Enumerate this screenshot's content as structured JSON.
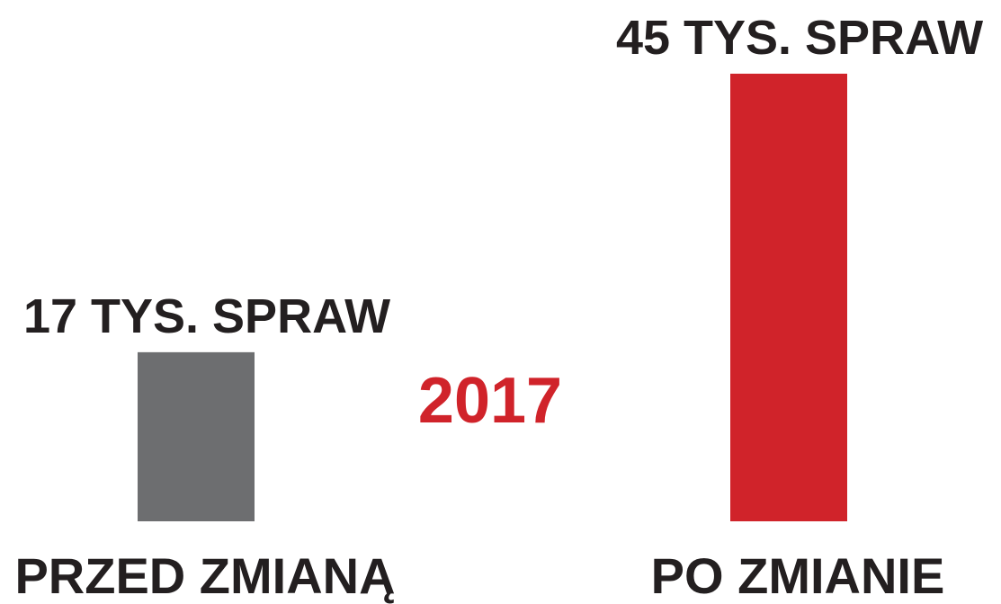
{
  "chart_data": {
    "type": "bar",
    "categories": [
      "PRZED ZMIANĄ",
      "PO ZMIANIE"
    ],
    "values": [
      17,
      45
    ],
    "value_labels": [
      "17 TYS. SPRAW",
      "45 TYS. SPRAW"
    ],
    "colors": [
      "#6d6e70",
      "#d0232a"
    ],
    "annotation": "2017"
  }
}
